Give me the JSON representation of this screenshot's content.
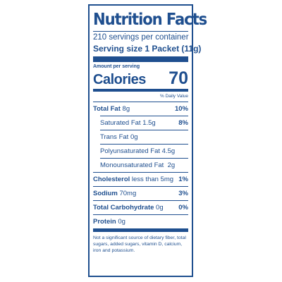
{
  "label": {
    "title": "Nutrition Facts",
    "servings": "210 servings per container",
    "serving_size": "Serving size 1 Packet (11g)",
    "amount_per_serving": "Amount per serving",
    "calories_label": "Calories",
    "calories_value": "70",
    "daily_value_header": "% Daily Value",
    "rows": [
      {
        "name": "Total Fat",
        "amount": "8g",
        "dv": "10%"
      },
      {
        "name": "Saturated Fat",
        "amount": "1.5g",
        "dv": "8%"
      },
      {
        "name": "Trans Fat",
        "amount": "0g",
        "dv": ""
      },
      {
        "name": "Polyunsaturated Fat",
        "amount": "4.5g",
        "dv": ""
      },
      {
        "name": "Monounsaturated Fat",
        "amount": "2g",
        "dv": ""
      },
      {
        "name": "Cholesterol",
        "amount": "less than 5mg",
        "dv": "1%"
      },
      {
        "name": "Sodium",
        "amount": "70mg",
        "dv": "3%"
      },
      {
        "name": "Total Carbohydrate",
        "amount": "0g",
        "dv": "0%"
      },
      {
        "name": "Protein",
        "amount": "0g",
        "dv": ""
      }
    ],
    "footnote": "Not a significant source of dietary fiber, total sugars, added sugars, vitamin D, calcium, iron and potassium."
  }
}
